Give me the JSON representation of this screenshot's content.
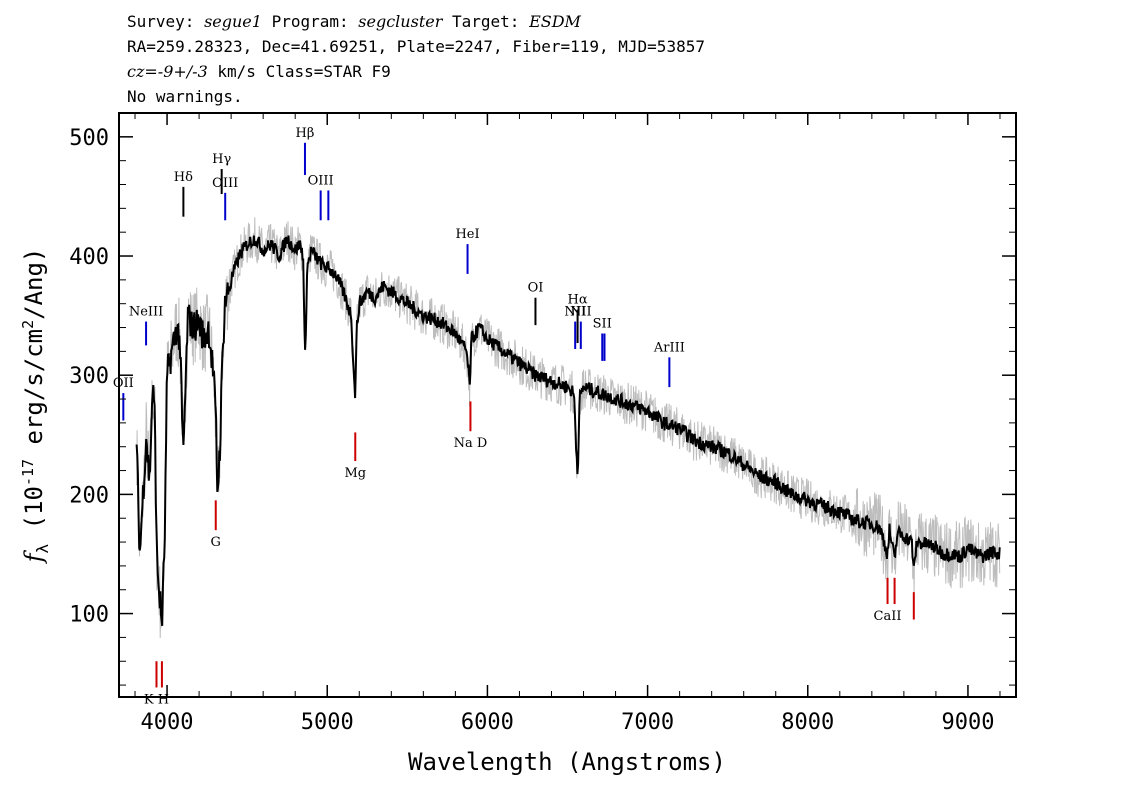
{
  "header": {
    "survey_label": "Survey:",
    "survey": "segue1",
    "program_label": "Program:",
    "program": "segcluster",
    "target_label": "Target:",
    "target": "ESDM",
    "line2": "RA=259.28323, Dec=41.69251, Plate=2247, Fiber=119, MJD=53857",
    "cz": "cz=",
    "cz_value": "-9+/-3",
    "cz_rest": " km/s Class=STAR F9",
    "line4": "No warnings."
  },
  "chart_data": {
    "type": "line",
    "xlabel": "Wavelength (Angstroms)",
    "ylabel_main": "f",
    "ylabel_sub": "λ",
    "ylabel_rest": " (10",
    "ylabel_exp": "-17",
    "ylabel_units": " erg/s/cm",
    "ylabel_exp2": "2",
    "ylabel_end": "/Ang)",
    "xlim": [
      3700,
      9300
    ],
    "ylim": [
      30,
      520
    ],
    "xticks": [
      4000,
      5000,
      6000,
      7000,
      8000,
      9000
    ],
    "xtick_labels": [
      "4000",
      "5000",
      "6000",
      "7000",
      "8000",
      "9000"
    ],
    "yticks": [
      100,
      200,
      300,
      400,
      500
    ],
    "ytick_labels": [
      "100",
      "200",
      "300",
      "400",
      "500"
    ],
    "series": [
      {
        "role": "smoothed flux",
        "color": "#000000",
        "x": [
          3810,
          3830,
          3850,
          3870,
          3890,
          3910,
          3925,
          3935,
          3950,
          3968,
          3985,
          4000,
          4030,
          4060,
          4080,
          4101,
          4130,
          4160,
          4200,
          4230,
          4260,
          4290,
          4305,
          4315,
          4330,
          4345,
          4360,
          4400,
          4450,
          4500,
          4550,
          4600,
          4650,
          4700,
          4750,
          4800,
          4830,
          4850,
          4861,
          4875,
          4900,
          4950,
          5000,
          5050,
          5100,
          5150,
          5173,
          5185,
          5200,
          5250,
          5300,
          5350,
          5400,
          5500,
          5600,
          5700,
          5800,
          5870,
          5890,
          5900,
          5950,
          6000,
          6100,
          6200,
          6300,
          6400,
          6500,
          6540,
          6563,
          6575,
          6600,
          6700,
          6800,
          6900,
          7000,
          7100,
          7200,
          7300,
          7400,
          7500,
          7600,
          7700,
          7800,
          7900,
          8000,
          8100,
          8200,
          8300,
          8400,
          8450,
          8498,
          8510,
          8542,
          8560,
          8600,
          8650,
          8662,
          8680,
          8750,
          8800,
          8850,
          8900,
          8950,
          9000,
          9050,
          9100,
          9150,
          9200
        ],
        "y": [
          240,
          150,
          200,
          250,
          210,
          290,
          260,
          150,
          120,
          90,
          160,
          300,
          320,
          340,
          330,
          230,
          350,
          340,
          345,
          330,
          340,
          300,
          260,
          200,
          240,
          310,
          360,
          380,
          400,
          410,
          415,
          405,
          410,
          400,
          415,
          405,
          410,
          400,
          310,
          390,
          405,
          395,
          390,
          385,
          370,
          350,
          280,
          340,
          360,
          370,
          365,
          375,
          370,
          360,
          350,
          345,
          335,
          320,
          290,
          330,
          340,
          330,
          320,
          310,
          300,
          295,
          290,
          285,
          215,
          280,
          290,
          285,
          280,
          275,
          270,
          260,
          255,
          245,
          240,
          235,
          225,
          215,
          210,
          200,
          195,
          190,
          185,
          178,
          175,
          172,
          150,
          170,
          145,
          168,
          165,
          160,
          135,
          160,
          158,
          155,
          150,
          150,
          148,
          155,
          150,
          148,
          152,
          150
        ]
      },
      {
        "role": "raw flux",
        "color": "#bdbdbd",
        "jitter": 18
      }
    ]
  },
  "lines": [
    {
      "label": "OII",
      "x": 3727,
      "y_top": 285,
      "y_bottom": 262,
      "color": "#0000cc"
    },
    {
      "label": "NeIII",
      "x": 3869,
      "y_top": 345,
      "y_bottom": 325,
      "color": "#0000cc"
    },
    {
      "label": "Hδ",
      "x": 4102,
      "y_top": 458,
      "y_bottom": 433,
      "color": "#000000"
    },
    {
      "label": "Hγ",
      "x": 4341,
      "y_top": 473,
      "y_bottom": 452,
      "color": "#000000"
    },
    {
      "label": "OIII",
      "x": 4363,
      "y_top": 453,
      "y_bottom": 430,
      "color": "#0000cc"
    },
    {
      "label": "Hβ",
      "x": 4861,
      "y_top": 495,
      "y_bottom": 468,
      "color": "#0000cc"
    },
    {
      "label": "OIII",
      "x": 4959,
      "y_top": 455,
      "y_bottom": 430,
      "color": "#0000cc"
    },
    {
      "label": "",
      "x": 5007,
      "y_top": 455,
      "y_bottom": 430,
      "color": "#0000cc"
    },
    {
      "label": "HeI",
      "x": 5876,
      "y_top": 410,
      "y_bottom": 385,
      "color": "#0000cc"
    },
    {
      "label": "OI",
      "x": 6300,
      "y_top": 365,
      "y_bottom": 342,
      "color": "#000000"
    },
    {
      "label": "NII",
      "x": 6548,
      "y_top": 345,
      "y_bottom": 322,
      "color": "#0000cc"
    },
    {
      "label": "Hα",
      "x": 6563,
      "y_top": 355,
      "y_bottom": 327,
      "color": "#000000"
    },
    {
      "label": "NII",
      "x": 6583,
      "y_top": 345,
      "y_bottom": 322,
      "color": "#0000cc"
    },
    {
      "label": "SII",
      "x": 6717,
      "y_top": 335,
      "y_bottom": 312,
      "color": "#0000cc"
    },
    {
      "label": "",
      "x": 6731,
      "y_top": 335,
      "y_bottom": 312,
      "color": "#0000cc"
    },
    {
      "label": "ArIII",
      "x": 7136,
      "y_top": 315,
      "y_bottom": 290,
      "color": "#0000cc"
    },
    {
      "label": "K H",
      "x": 3934,
      "y_top": 60,
      "y_bottom": 38,
      "color": "#cc0000"
    },
    {
      "label": "",
      "x": 3968,
      "y_top": 60,
      "y_bottom": 38,
      "color": "#cc0000"
    },
    {
      "label": "G",
      "x": 4304,
      "y_top": 195,
      "y_bottom": 170,
      "color": "#cc0000"
    },
    {
      "label": "Mg",
      "x": 5175,
      "y_top": 252,
      "y_bottom": 228,
      "color": "#cc0000"
    },
    {
      "label": "Na  D",
      "x": 5894,
      "y_top": 278,
      "y_bottom": 253,
      "color": "#cc0000"
    },
    {
      "label": "CaII",
      "x": 8498,
      "y_top": 130,
      "y_bottom": 108,
      "color": "#cc0000"
    },
    {
      "label": "",
      "x": 8542,
      "y_top": 130,
      "y_bottom": 108,
      "color": "#cc0000"
    },
    {
      "label": "",
      "x": 8662,
      "y_top": 118,
      "y_bottom": 95,
      "color": "#cc0000"
    }
  ]
}
